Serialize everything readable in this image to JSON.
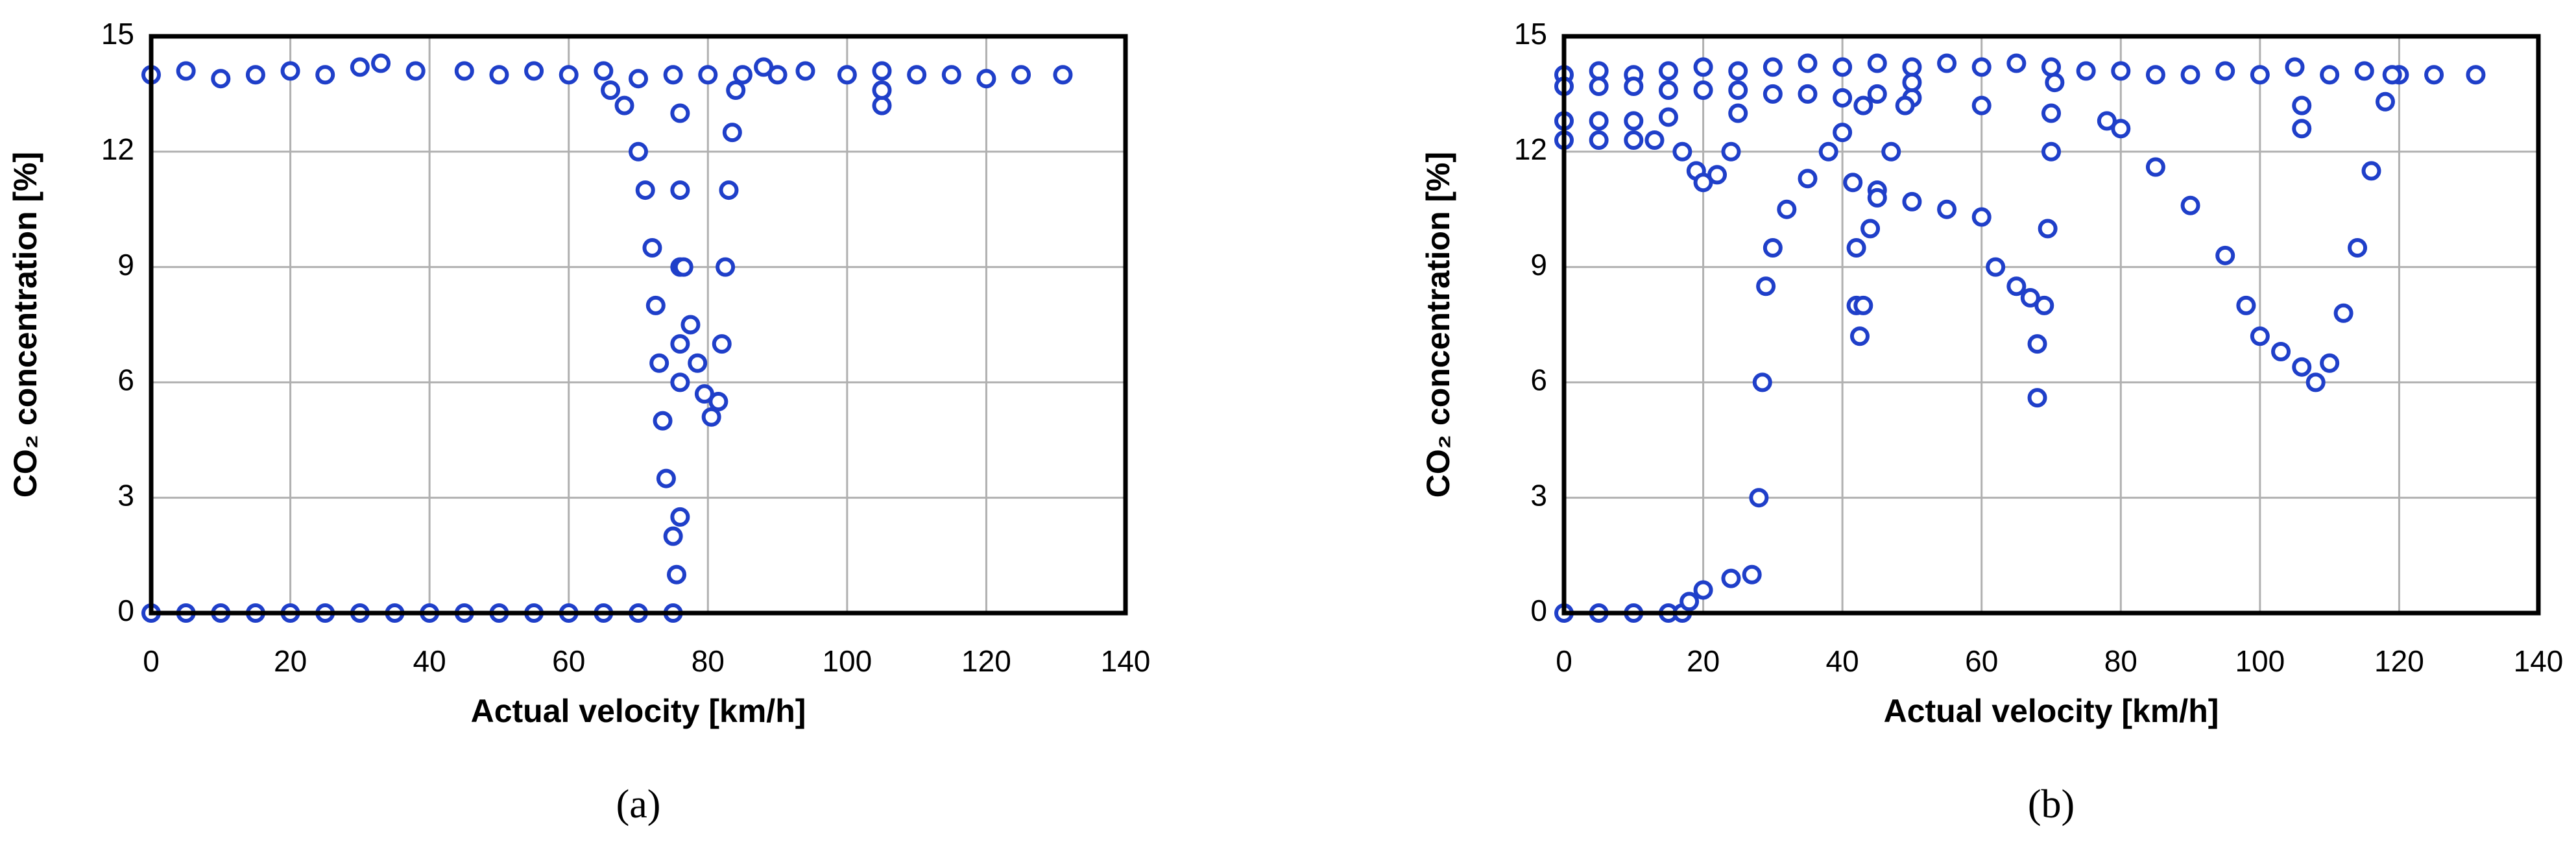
{
  "chart_data": [
    {
      "type": "scatter",
      "caption": "(a)",
      "x_label": "Actual velocity [km/h]",
      "y_label": "CO₂ concentration [%]",
      "color": "#1f3fc9",
      "grid": true,
      "xlim": [
        0,
        140
      ],
      "xticks": [
        0,
        20,
        40,
        60,
        80,
        100,
        120,
        140
      ],
      "ylim": [
        0,
        15
      ],
      "yticks": [
        0,
        3,
        6,
        9,
        12,
        15
      ],
      "x": [
        0,
        5,
        10,
        15,
        20,
        25,
        30,
        33,
        38,
        45,
        50,
        55,
        60,
        65,
        70,
        75,
        80,
        85,
        88,
        90,
        94,
        100,
        105,
        110,
        115,
        120,
        125,
        131,
        0,
        5,
        10,
        15,
        20,
        25,
        30,
        35,
        40,
        45,
        50,
        55,
        60,
        65,
        70,
        75,
        66,
        68,
        70,
        71,
        72,
        72.5,
        73,
        73.5,
        74,
        75,
        75.5,
        76,
        76,
        76,
        76,
        76,
        76,
        76.5,
        77.5,
        78.5,
        79.5,
        80.5,
        81.5,
        82,
        82.5,
        83,
        83.5,
        84,
        105,
        105
      ],
      "values": [
        14,
        14.1,
        13.9,
        14,
        14.1,
        14,
        14.2,
        14.3,
        14.1,
        14.1,
        14,
        14.1,
        14,
        14.1,
        13.9,
        14,
        14,
        14,
        14.2,
        14,
        14.1,
        14,
        14.1,
        14,
        14,
        13.9,
        14,
        14,
        0,
        0,
        0,
        0,
        0,
        0,
        0,
        0,
        0,
        0,
        0,
        0,
        0,
        0,
        0,
        0,
        13.6,
        13.2,
        12,
        11,
        9.5,
        8,
        6.5,
        5,
        3.5,
        2,
        1,
        2.5,
        13,
        11,
        9,
        7,
        6,
        9,
        7.5,
        6.5,
        5.7,
        5.1,
        5.5,
        7,
        9,
        11,
        12.5,
        13.6,
        13.2,
        13.6
      ]
    },
    {
      "type": "scatter",
      "caption": "(b)",
      "x_label": "Actual velocity [km/h]",
      "y_label": "CO₂ concentration [%]",
      "color": "#1f3fc9",
      "grid": true,
      "xlim": [
        0,
        140
      ],
      "xticks": [
        0,
        20,
        40,
        60,
        80,
        100,
        120,
        140
      ],
      "ylim": [
        0,
        15
      ],
      "yticks": [
        0,
        3,
        6,
        9,
        12,
        15
      ],
      "x": [
        0,
        5,
        10,
        15,
        20,
        25,
        30,
        35,
        40,
        45,
        50,
        55,
        60,
        65,
        70,
        75,
        80,
        85,
        90,
        95,
        100,
        105,
        110,
        115,
        120,
        125,
        131,
        0,
        5,
        10,
        15,
        20,
        25,
        30,
        35,
        40,
        0,
        5,
        10,
        15,
        17,
        18,
        20,
        24,
        27,
        28,
        28.5,
        29,
        30,
        32,
        35,
        38,
        40,
        43,
        45,
        50,
        60,
        70,
        78,
        80,
        85,
        90,
        95,
        98,
        100,
        103,
        106,
        108,
        110,
        112,
        114,
        116,
        118,
        119,
        0,
        5,
        10,
        13,
        0,
        5,
        10,
        15,
        17,
        19,
        20,
        22,
        24,
        25,
        41.5,
        42,
        42,
        42.5,
        43,
        44,
        45,
        47,
        49,
        50,
        45,
        50,
        55,
        60,
        62,
        65,
        67,
        68,
        68,
        69,
        69.5,
        70,
        70.5,
        106,
        106
      ],
      "values": [
        14,
        14.1,
        14,
        14.1,
        14.2,
        14.1,
        14.2,
        14.3,
        14.2,
        14.3,
        14.2,
        14.3,
        14.2,
        14.3,
        14.2,
        14.1,
        14.1,
        14,
        14,
        14.1,
        14,
        14.2,
        14,
        14.1,
        14,
        14,
        14,
        13.7,
        13.7,
        13.7,
        13.6,
        13.6,
        13.6,
        13.5,
        13.5,
        13.4,
        0,
        0,
        0,
        0,
        0,
        0.3,
        0.6,
        0.9,
        1,
        3,
        6,
        8.5,
        9.5,
        10.5,
        11.3,
        12,
        12.5,
        13.2,
        13.5,
        13.4,
        13.2,
        13,
        12.8,
        12.6,
        11.6,
        10.6,
        9.3,
        8,
        7.2,
        6.8,
        6.4,
        6,
        6.5,
        7.8,
        9.5,
        11.5,
        13.3,
        14,
        12.3,
        12.3,
        12.3,
        12.3,
        12.8,
        12.8,
        12.8,
        12.9,
        12,
        11.5,
        11.2,
        11.4,
        12,
        13,
        11.2,
        9.5,
        8,
        7.2,
        8,
        10,
        11,
        12,
        13.2,
        13.8,
        10.8,
        10.7,
        10.5,
        10.3,
        9,
        8.5,
        8.2,
        7,
        5.6,
        8,
        10,
        12,
        13.8,
        12.6,
        13.2
      ]
    }
  ]
}
